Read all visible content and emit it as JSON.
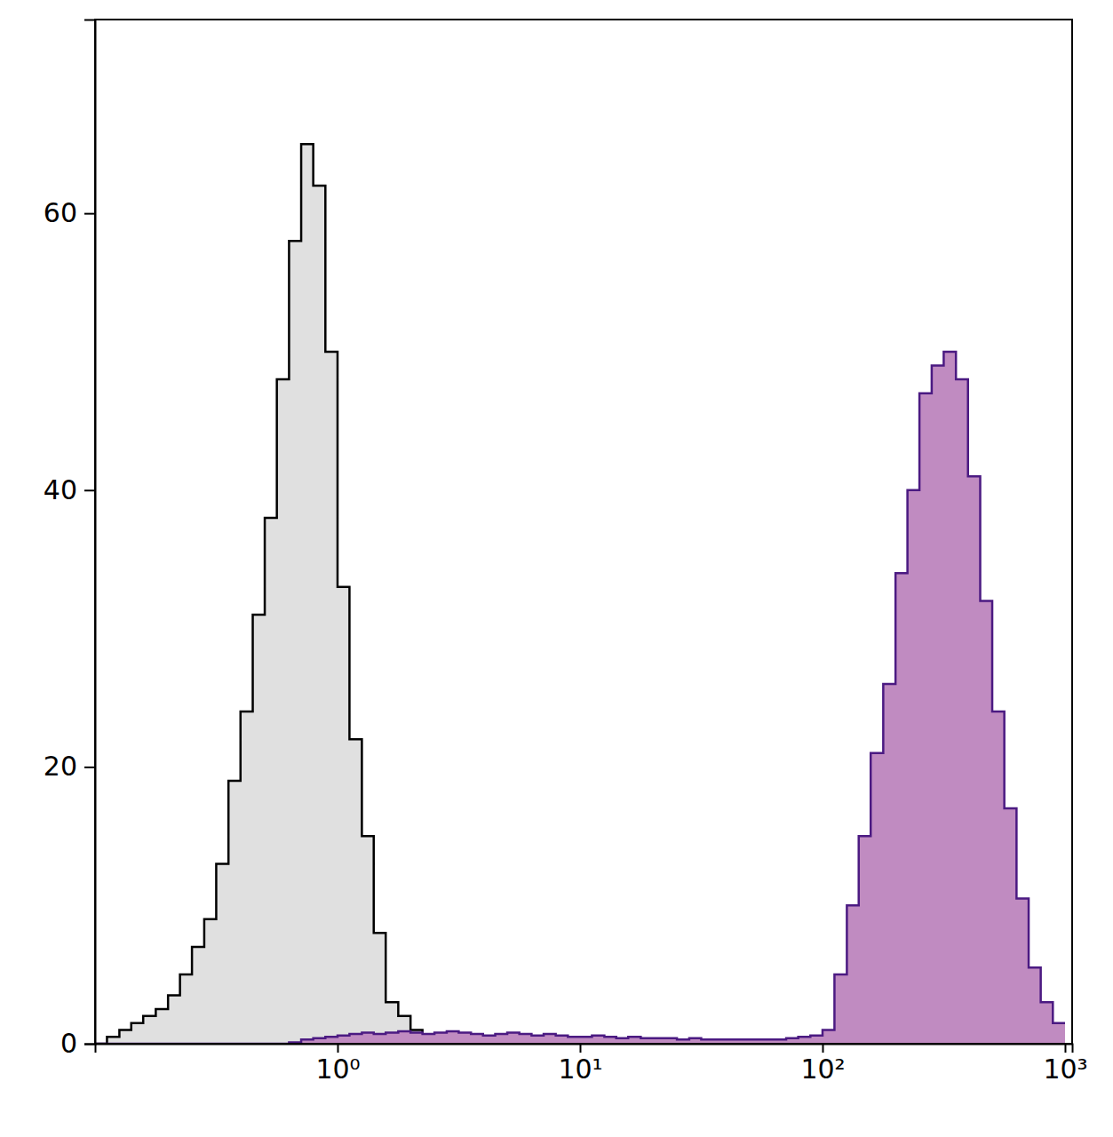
{
  "chart_data": {
    "type": "histogram",
    "log": "x",
    "xlim": [
      0.1,
      1070
    ],
    "xticks": [
      {
        "value": 1,
        "label": "10⁰"
      },
      {
        "value": 10,
        "label": "10¹"
      },
      {
        "value": 100,
        "label": "10²"
      },
      {
        "value": 1000,
        "label": "10³"
      }
    ],
    "ylim": [
      0,
      74
    ],
    "yticks": [
      0,
      20,
      40,
      60
    ],
    "bins": [
      0.1,
      0.112,
      0.126,
      0.141,
      0.158,
      0.178,
      0.2,
      0.224,
      0.251,
      0.282,
      0.316,
      0.355,
      0.398,
      0.447,
      0.501,
      0.562,
      0.631,
      0.708,
      0.794,
      0.891,
      1,
      1.12,
      1.26,
      1.41,
      1.58,
      1.78,
      2,
      2.24,
      2.51,
      2.82,
      3.16,
      3.55,
      3.98,
      4.47,
      5.01,
      5.62,
      6.31,
      7.08,
      7.94,
      8.91,
      10,
      11.2,
      12.6,
      14.1,
      15.8,
      17.8,
      20,
      22.4,
      25.1,
      28.2,
      31.6,
      35.5,
      39.8,
      44.7,
      50.1,
      56.2,
      63.1,
      70.8,
      79.4,
      89.1,
      100,
      112,
      126,
      141,
      158,
      178,
      200,
      224,
      251,
      282,
      316,
      355,
      398,
      447,
      501,
      562,
      631,
      708,
      794,
      891,
      1000
    ],
    "series": [
      {
        "color": "#e0e0e0",
        "values": [
          0,
          0.5,
          1,
          1.5,
          2,
          2.5,
          3.5,
          5,
          7,
          9,
          13,
          19,
          24,
          31,
          38,
          48,
          58,
          65,
          62,
          50,
          33,
          22,
          15,
          8,
          3,
          2,
          1,
          0.5,
          0.3,
          0.2,
          0.2,
          0.2,
          0.2,
          0.2,
          0.2,
          0,
          0,
          0,
          0,
          0,
          0,
          0,
          0,
          0,
          0,
          0,
          0,
          0,
          0,
          0,
          0,
          0,
          0,
          0,
          0,
          0,
          0,
          0,
          0,
          0,
          0,
          0,
          0,
          0,
          0,
          0,
          0,
          0,
          0,
          0,
          0,
          0,
          0,
          0,
          0,
          0,
          0,
          0,
          0,
          0
        ]
      },
      {
        "color": "#c08bc1",
        "values": [
          0,
          0,
          0,
          0,
          0,
          0,
          0,
          0,
          0,
          0,
          0,
          0,
          0,
          0,
          0,
          0,
          0.1,
          0.3,
          0.4,
          0.5,
          0.6,
          0.7,
          0.8,
          0.7,
          0.8,
          0.9,
          0.8,
          0.7,
          0.8,
          0.9,
          0.8,
          0.7,
          0.6,
          0.7,
          0.8,
          0.7,
          0.6,
          0.7,
          0.6,
          0.5,
          0.5,
          0.6,
          0.5,
          0.4,
          0.5,
          0.4,
          0.4,
          0.4,
          0.3,
          0.4,
          0.3,
          0.3,
          0.3,
          0.3,
          0.3,
          0.3,
          0.3,
          0.4,
          0.5,
          0.6,
          1,
          5,
          10,
          15,
          21,
          26,
          34,
          40,
          47,
          49,
          50,
          48,
          41,
          32,
          24,
          17,
          10.5,
          5.5,
          3,
          1.5
        ]
      }
    ]
  }
}
